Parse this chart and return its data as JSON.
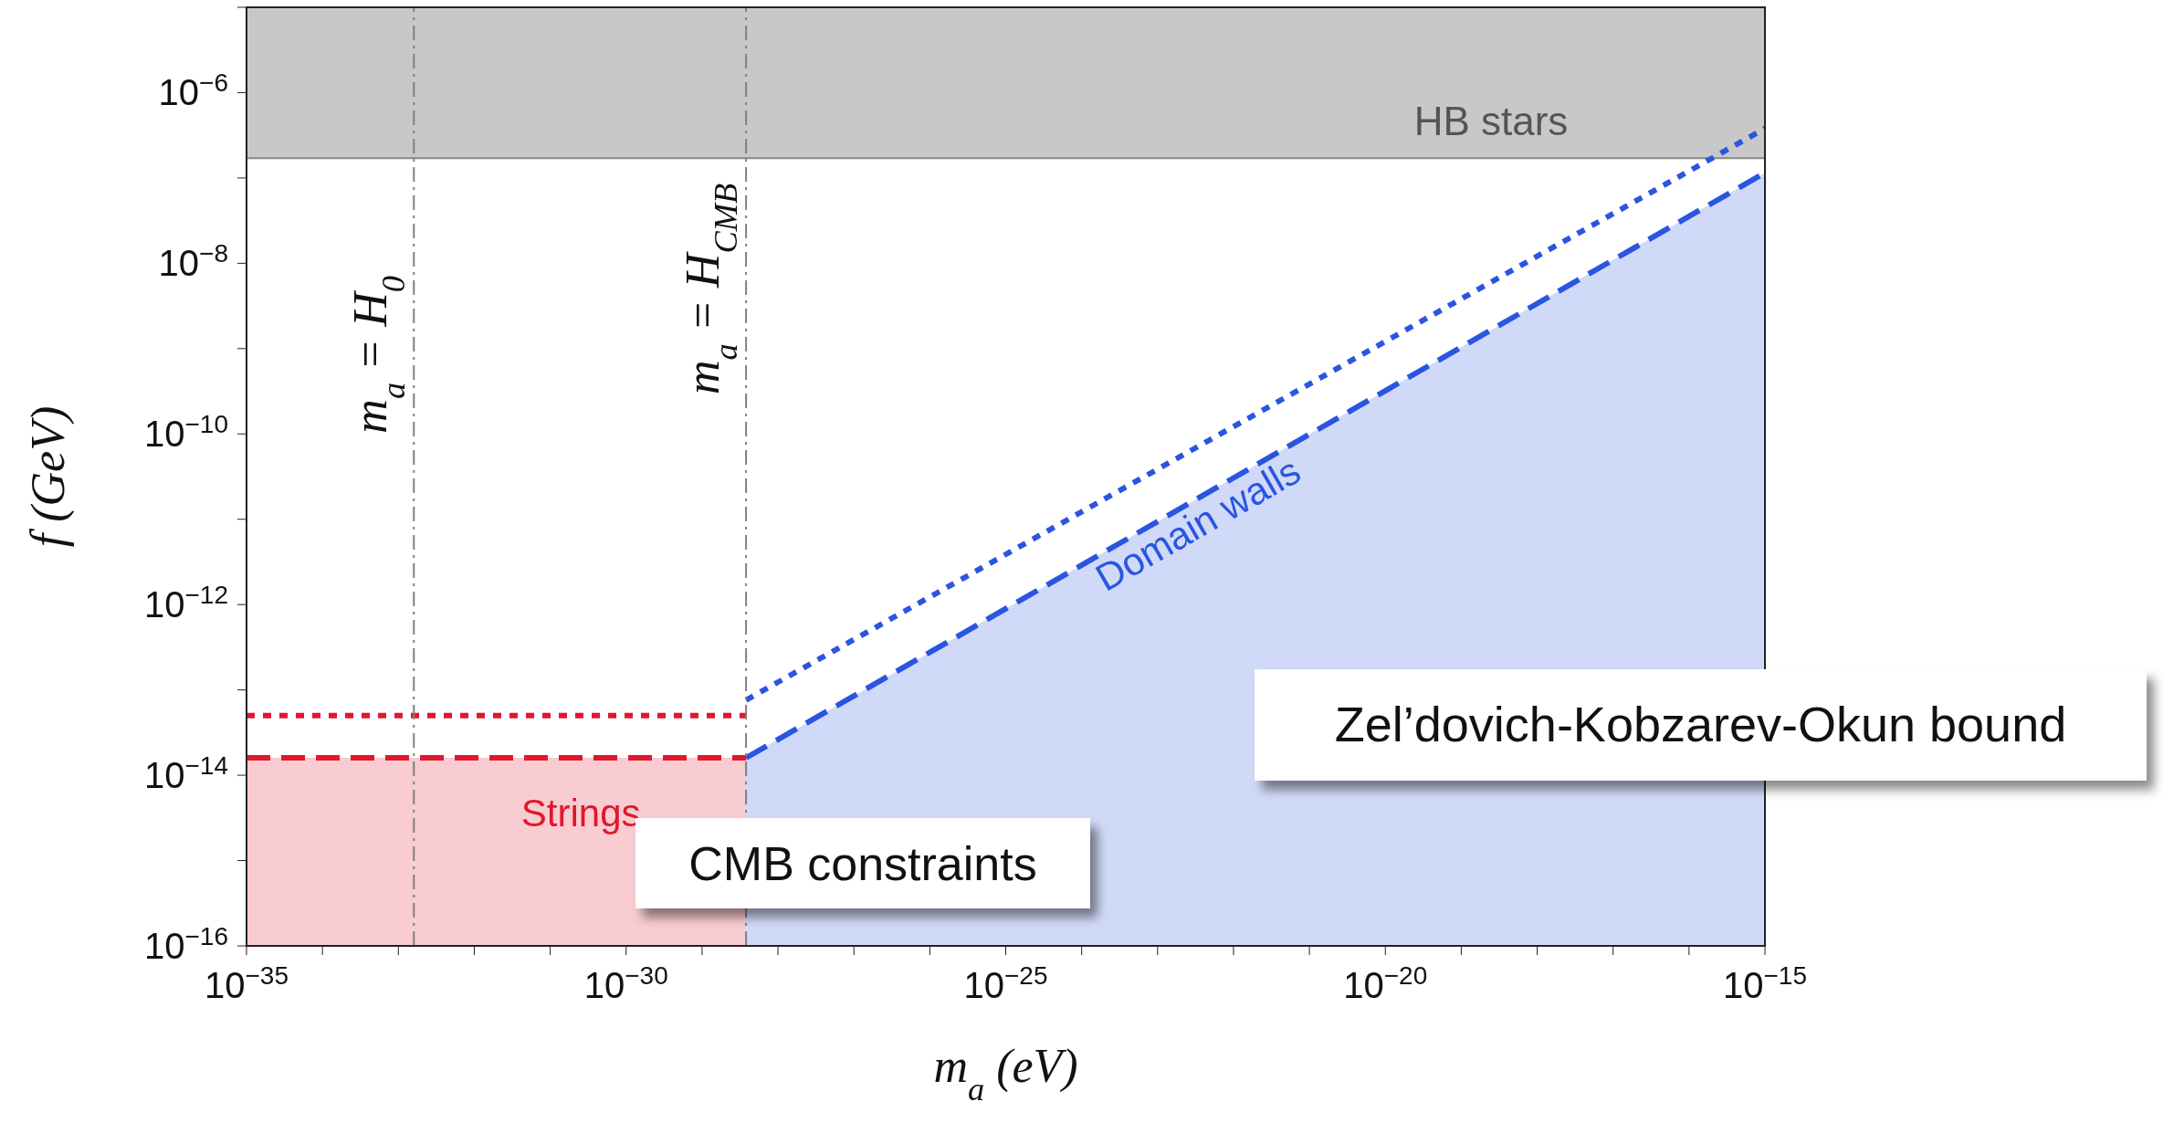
{
  "chart_data": {
    "type": "line",
    "xlabel": "m$_{a}$ (eV)",
    "ylabel": "f (GeV)",
    "log": "xy",
    "xlim": [
      1e-35,
      1e-15
    ],
    "ylim": [
      1e-16,
      1e-05
    ],
    "xticks": [
      {
        "value": 1e-35,
        "label": "10$^{−35}$"
      },
      {
        "value": 1e-34,
        "label": null
      },
      {
        "value": 1e-33,
        "label": null
      },
      {
        "value": 1e-32,
        "label": null
      },
      {
        "value": 1e-31,
        "label": null
      },
      {
        "value": 1e-30,
        "label": "10$^{−30}$"
      },
      {
        "value": 1e-29,
        "label": null
      },
      {
        "value": 1e-28,
        "label": null
      },
      {
        "value": 1e-27,
        "label": null
      },
      {
        "value": 1e-26,
        "label": null
      },
      {
        "value": 1e-25,
        "label": "10$^{−25}$"
      },
      {
        "value": 1e-24,
        "label": null
      },
      {
        "value": 1e-23,
        "label": null
      },
      {
        "value": 1e-22,
        "label": null
      },
      {
        "value": 1e-21,
        "label": null
      },
      {
        "value": 1e-20,
        "label": "10$^{−20}$"
      },
      {
        "value": 1e-19,
        "label": null
      },
      {
        "value": 1e-18,
        "label": null
      },
      {
        "value": 1e-17,
        "label": null
      },
      {
        "value": 1e-16,
        "label": null
      },
      {
        "value": 1e-15,
        "label": "10$^{−15}$"
      }
    ],
    "yticks": [
      {
        "value": 1e-16,
        "label": "10$^{−16}$"
      },
      {
        "value": 1e-15,
        "label": null
      },
      {
        "value": 1e-14,
        "label": "10$^{−14}$"
      },
      {
        "value": 1e-13,
        "label": null
      },
      {
        "value": 1e-12,
        "label": "10$^{−12}$"
      },
      {
        "value": 1e-11,
        "label": null
      },
      {
        "value": 1e-10,
        "label": "10$^{−10}$"
      },
      {
        "value": 1e-09,
        "label": null
      },
      {
        "value": 1e-08,
        "label": "10$^{−8}$"
      },
      {
        "value": 1e-07,
        "label": null
      },
      {
        "value": 1e-06,
        "label": "10$^{−6}$"
      },
      {
        "value": 1e-05,
        "label": null
      }
    ],
    "series": [
      {
        "type": "area",
        "name": "Strings",
        "color": "#e0182d",
        "line_style": "dashed",
        "x": [
          1e-35,
          3.8e-29
        ],
        "values": [
          1.6e-14,
          1.6e-14
        ]
      },
      {
        "color": "#e0182d",
        "line_style": "dotted",
        "x": [
          1e-35,
          3.8e-29
        ],
        "values": [
          5e-14,
          5e-14
        ]
      },
      {
        "type": "area",
        "name": "Domain walls",
        "color": "#2a55e0",
        "line_style": "dashed",
        "x": [
          3.8e-29,
          1e-15
        ],
        "values": [
          1.6e-14,
          1.15e-07
        ]
      },
      {
        "color": "#2a55e0",
        "line_style": "dotted",
        "x": [
          3.8e-29,
          1e-15
        ],
        "values": [
          7.6e-14,
          3.8e-07
        ]
      }
    ],
    "ref_lines": [
      {
        "axis": "x",
        "value": 1.6e-33,
        "label": "m$_{a}$ = H$_{0}$",
        "color": "#808080",
        "line_style": "dashed"
      },
      {
        "axis": "x",
        "value": 3.8e-29,
        "label": "m$_{a}$ = H$_{CMB}$",
        "color": "#808080",
        "line_style": "dashed"
      }
    ],
    "bands": [
      {
        "axis": "y",
        "from": 1.7e-07,
        "to": 1e-05,
        "label": "HB stars",
        "color": "#c8c8c8"
      }
    ],
    "annotations": [
      "Zel’dovich-Kobzarev-Okun bound",
      "CMB constraints"
    ]
  }
}
